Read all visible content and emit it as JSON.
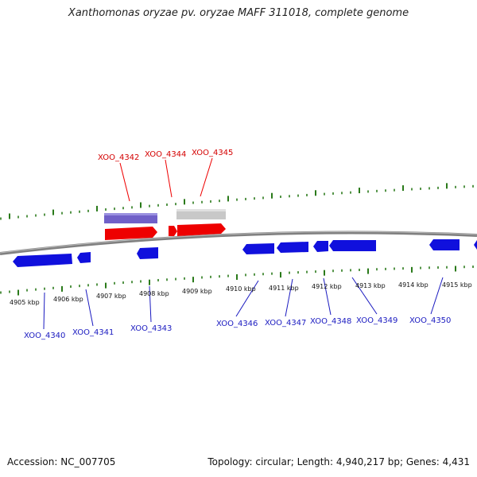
{
  "title": "Xanthomonas oryzae pv. oryzae MAFF 311018, complete genome",
  "footer": {
    "accession": "Accession: NC_007705",
    "topology": "Topology: circular; Length: 4,940,217 bp; Genes: 4,431"
  },
  "kbp_labels": [
    "4905 kbp",
    "4906 kbp",
    "4907 kbp",
    "4908 kbp",
    "4909 kbp",
    "4910 kbp",
    "4911 kbp",
    "4912 kbp",
    "4913 kbp",
    "4914 kbp",
    "4915 kbp"
  ],
  "top_genes": [
    "XOO_4342",
    "XOO_4344",
    "XOO_4345"
  ],
  "bottom_genes": [
    "XOO_4340",
    "XOO_4341",
    "XOO_4343",
    "XOO_4346",
    "XOO_4347",
    "XOO_4348",
    "XOO_4349",
    "XOO_4350"
  ],
  "colors": {
    "forward_gene": "#ee0000",
    "reverse_gene": "#1010dd",
    "tick": "#2a7a1a",
    "backbone": "#808080",
    "track_blue": "#7060c8",
    "track_gray": "#c8c8c8"
  }
}
